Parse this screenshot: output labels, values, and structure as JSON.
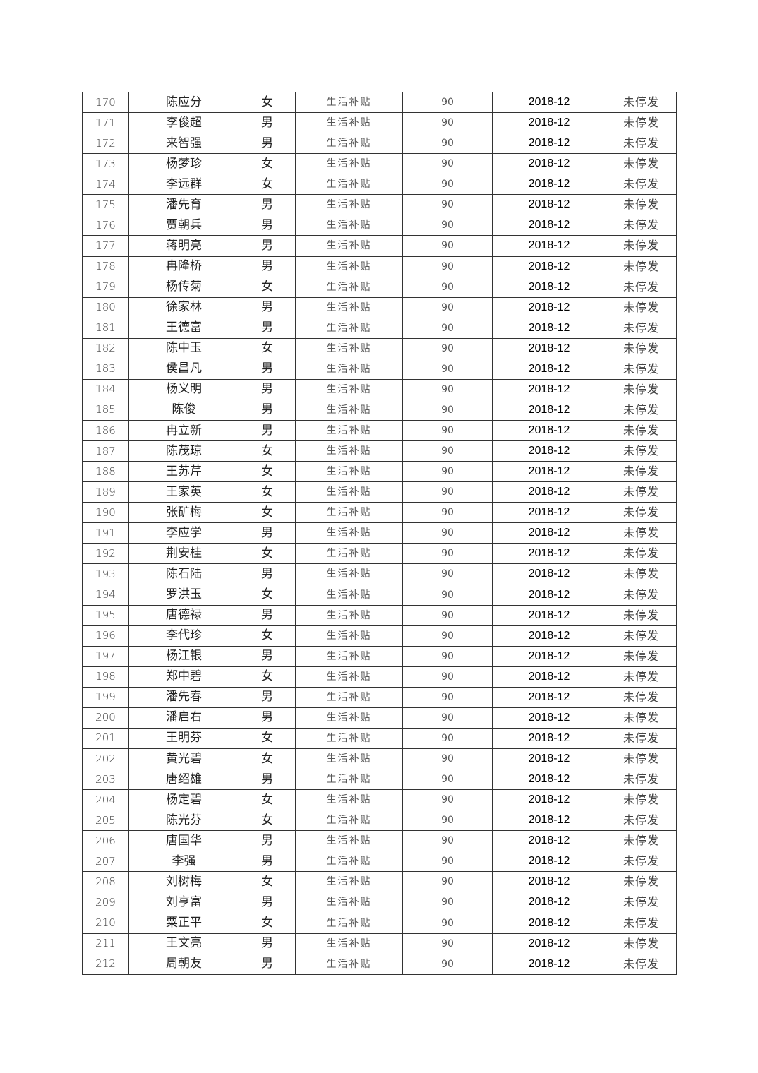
{
  "table": {
    "rows": [
      [
        "170",
        "陈应分",
        "女",
        "生活补贴",
        "90",
        "2018-12",
        "未停发"
      ],
      [
        "171",
        "李俊超",
        "男",
        "生活补贴",
        "90",
        "2018-12",
        "未停发"
      ],
      [
        "172",
        "来智强",
        "男",
        "生活补贴",
        "90",
        "2018-12",
        "未停发"
      ],
      [
        "173",
        "杨梦珍",
        "女",
        "生活补贴",
        "90",
        "2018-12",
        "未停发"
      ],
      [
        "174",
        "李远群",
        "女",
        "生活补贴",
        "90",
        "2018-12",
        "未停发"
      ],
      [
        "175",
        "潘先育",
        "男",
        "生活补贴",
        "90",
        "2018-12",
        "未停发"
      ],
      [
        "176",
        "贾朝兵",
        "男",
        "生活补贴",
        "90",
        "2018-12",
        "未停发"
      ],
      [
        "177",
        "蒋明亮",
        "男",
        "生活补贴",
        "90",
        "2018-12",
        "未停发"
      ],
      [
        "178",
        "冉隆桥",
        "男",
        "生活补贴",
        "90",
        "2018-12",
        "未停发"
      ],
      [
        "179",
        "杨传菊",
        "女",
        "生活补贴",
        "90",
        "2018-12",
        "未停发"
      ],
      [
        "180",
        "徐家林",
        "男",
        "生活补贴",
        "90",
        "2018-12",
        "未停发"
      ],
      [
        "181",
        "王德富",
        "男",
        "生活补贴",
        "90",
        "2018-12",
        "未停发"
      ],
      [
        "182",
        "陈中玉",
        "女",
        "生活补贴",
        "90",
        "2018-12",
        "未停发"
      ],
      [
        "183",
        "侯昌凡",
        "男",
        "生活补贴",
        "90",
        "2018-12",
        "未停发"
      ],
      [
        "184",
        "杨义明",
        "男",
        "生活补贴",
        "90",
        "2018-12",
        "未停发"
      ],
      [
        "185",
        "陈俊",
        "男",
        "生活补贴",
        "90",
        "2018-12",
        "未停发"
      ],
      [
        "186",
        "冉立新",
        "男",
        "生活补贴",
        "90",
        "2018-12",
        "未停发"
      ],
      [
        "187",
        "陈茂琼",
        "女",
        "生活补贴",
        "90",
        "2018-12",
        "未停发"
      ],
      [
        "188",
        "王苏芹",
        "女",
        "生活补贴",
        "90",
        "2018-12",
        "未停发"
      ],
      [
        "189",
        "王家英",
        "女",
        "生活补贴",
        "90",
        "2018-12",
        "未停发"
      ],
      [
        "190",
        "张矿梅",
        "女",
        "生活补贴",
        "90",
        "2018-12",
        "未停发"
      ],
      [
        "191",
        "李应学",
        "男",
        "生活补贴",
        "90",
        "2018-12",
        "未停发"
      ],
      [
        "192",
        "荆安桂",
        "女",
        "生活补贴",
        "90",
        "2018-12",
        "未停发"
      ],
      [
        "193",
        "陈石陆",
        "男",
        "生活补贴",
        "90",
        "2018-12",
        "未停发"
      ],
      [
        "194",
        "罗洪玉",
        "女",
        "生活补贴",
        "90",
        "2018-12",
        "未停发"
      ],
      [
        "195",
        "唐德禄",
        "男",
        "生活补贴",
        "90",
        "2018-12",
        "未停发"
      ],
      [
        "196",
        "李代珍",
        "女",
        "生活补贴",
        "90",
        "2018-12",
        "未停发"
      ],
      [
        "197",
        "杨江银",
        "男",
        "生活补贴",
        "90",
        "2018-12",
        "未停发"
      ],
      [
        "198",
        "郑中碧",
        "女",
        "生活补贴",
        "90",
        "2018-12",
        "未停发"
      ],
      [
        "199",
        "潘先春",
        "男",
        "生活补贴",
        "90",
        "2018-12",
        "未停发"
      ],
      [
        "200",
        "潘启右",
        "男",
        "生活补贴",
        "90",
        "2018-12",
        "未停发"
      ],
      [
        "201",
        "王明芬",
        "女",
        "生活补贴",
        "90",
        "2018-12",
        "未停发"
      ],
      [
        "202",
        "黄光碧",
        "女",
        "生活补贴",
        "90",
        "2018-12",
        "未停发"
      ],
      [
        "203",
        "唐绍雄",
        "男",
        "生活补贴",
        "90",
        "2018-12",
        "未停发"
      ],
      [
        "204",
        "杨定碧",
        "女",
        "生活补贴",
        "90",
        "2018-12",
        "未停发"
      ],
      [
        "205",
        "陈光芬",
        "女",
        "生活补贴",
        "90",
        "2018-12",
        "未停发"
      ],
      [
        "206",
        "唐国华",
        "男",
        "生活补贴",
        "90",
        "2018-12",
        "未停发"
      ],
      [
        "207",
        "李强",
        "男",
        "生活补贴",
        "90",
        "2018-12",
        "未停发"
      ],
      [
        "208",
        "刘树梅",
        "女",
        "生活补贴",
        "90",
        "2018-12",
        "未停发"
      ],
      [
        "209",
        "刘亨富",
        "男",
        "生活补贴",
        "90",
        "2018-12",
        "未停发"
      ],
      [
        "210",
        "粟正平",
        "女",
        "生活补贴",
        "90",
        "2018-12",
        "未停发"
      ],
      [
        "211",
        "王文亮",
        "男",
        "生活补贴",
        "90",
        "2018-12",
        "未停发"
      ],
      [
        "212",
        "周朝友",
        "男",
        "生活补贴",
        "90",
        "2018-12",
        "未停发"
      ]
    ]
  }
}
